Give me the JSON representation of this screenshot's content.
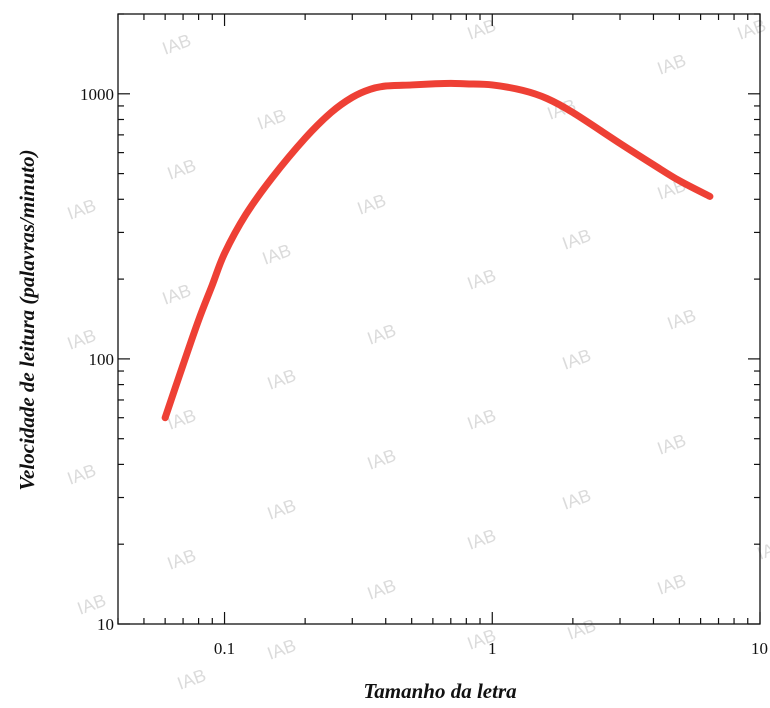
{
  "chart_data": {
    "type": "line",
    "title": "",
    "xlabel": "Tamanho da letra",
    "ylabel": "Velocidade de leitura (palavras/minuto)",
    "xscale": "log",
    "yscale": "log",
    "xlim": [
      0.04,
      10
    ],
    "ylim": [
      10,
      2000
    ],
    "grid": false,
    "legend": "none",
    "x_tick_labels": [
      {
        "value": 0.1,
        "label": "0.1"
      },
      {
        "value": 1,
        "label": "1"
      },
      {
        "value": 10,
        "label": "10"
      }
    ],
    "y_tick_labels": [
      {
        "value": 10,
        "label": "10"
      },
      {
        "value": 100,
        "label": "100"
      },
      {
        "value": 1000,
        "label": "1000"
      }
    ],
    "watermark_text": "IAB",
    "series": [
      {
        "color": "#ee4035",
        "x": [
          0.06,
          0.07,
          0.08,
          0.09,
          0.1,
          0.12,
          0.15,
          0.2,
          0.25,
          0.3,
          0.35,
          0.4,
          0.5,
          0.6,
          0.7,
          0.8,
          1.0,
          1.3,
          1.6,
          2.0,
          3.0,
          4.0,
          5.0,
          6.5
        ],
        "y": [
          60,
          95,
          140,
          190,
          250,
          350,
          480,
          680,
          850,
          970,
          1040,
          1070,
          1080,
          1090,
          1095,
          1090,
          1080,
          1030,
          960,
          850,
          650,
          540,
          470,
          410
        ]
      }
    ]
  }
}
